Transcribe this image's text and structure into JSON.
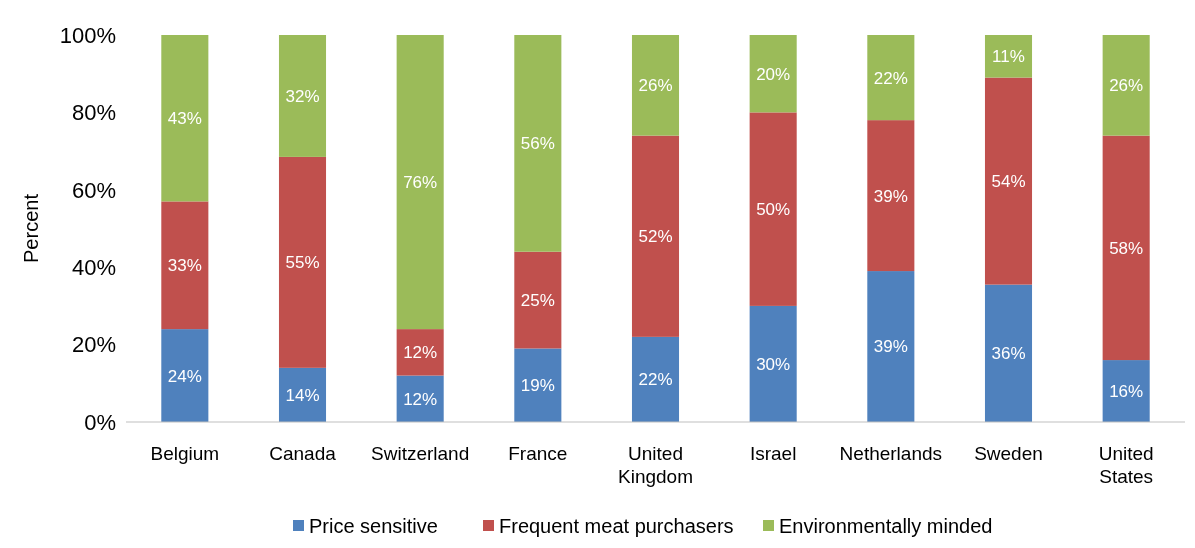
{
  "chart_data": {
    "type": "bar",
    "stacked": true,
    "ylabel": "Percent",
    "categories": [
      "Belgium",
      "Canada",
      "Switzerland",
      "France",
      "United Kingdom",
      "Israel",
      "Netherlands",
      "Sweden",
      "United States"
    ],
    "series": [
      {
        "name": "Price sensitive",
        "color": "#4f81bd",
        "values": [
          24,
          14,
          12,
          19,
          22,
          30,
          39,
          35.5,
          16
        ],
        "value_labels": [
          "24%",
          "14%",
          "12%",
          "19%",
          "22%",
          "30%",
          "39%",
          "36%",
          "16%"
        ]
      },
      {
        "name": "Frequent meat purchasers",
        "color": "#c0504d",
        "values": [
          33,
          54.5,
          12,
          25,
          52,
          50,
          39,
          53.5,
          58
        ],
        "value_labels": [
          "33%",
          "55%",
          "12%",
          "25%",
          "52%",
          "50%",
          "39%",
          "54%",
          "58%"
        ]
      },
      {
        "name": "Environmentally minded",
        "color": "#9bbb59",
        "values": [
          43,
          31.5,
          76,
          56,
          26,
          20,
          22,
          11,
          26
        ],
        "value_labels": [
          "43%",
          "32%",
          "76%",
          "56%",
          "26%",
          "20%",
          "22%",
          "11%",
          "26%"
        ]
      }
    ],
    "ylim": [
      0,
      100
    ],
    "yticks": [
      {
        "value": 0,
        "label": "0%"
      },
      {
        "value": 20,
        "label": "20%"
      },
      {
        "value": 40,
        "label": "40%"
      },
      {
        "value": 60,
        "label": "60%"
      },
      {
        "value": 80,
        "label": "80%"
      },
      {
        "value": 100,
        "label": "100%"
      }
    ],
    "grid": false,
    "legend": "bottom"
  }
}
